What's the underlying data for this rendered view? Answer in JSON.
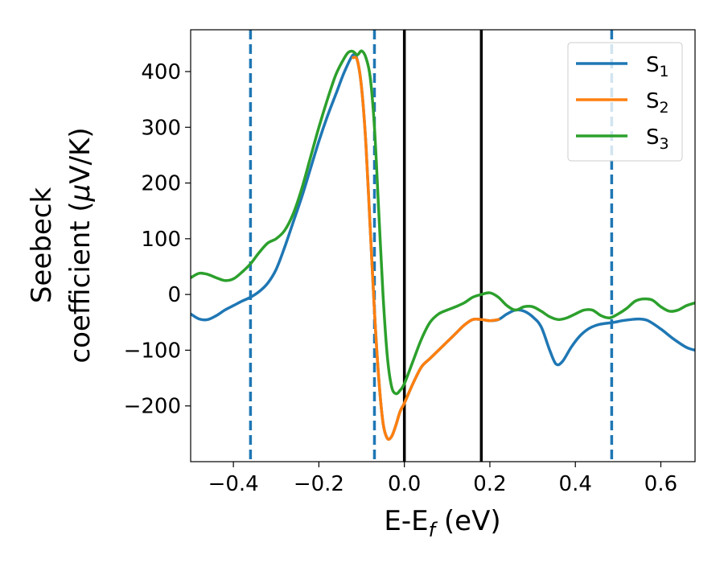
{
  "chart_data": {
    "type": "line",
    "xlabel": {
      "main": "E-E",
      "sub": "f",
      "unit": " (eV)"
    },
    "ylabel": {
      "line1": "Seebeck",
      "line2_prefix": "coefficient  (",
      "mu": "μ",
      "line2_suffix": "V/K)"
    },
    "xlim": [
      -0.5,
      0.68
    ],
    "ylim": [
      -300,
      475
    ],
    "x_ticks": [
      -0.4,
      -0.2,
      0.0,
      0.2,
      0.4,
      0.6
    ],
    "x_tick_labels": [
      "−0.4",
      "−0.2",
      "0.0",
      "0.2",
      "0.4",
      "0.6"
    ],
    "y_ticks": [
      -200,
      -100,
      0,
      100,
      200,
      300,
      400
    ],
    "y_tick_labels": [
      "−200",
      "−100",
      "0",
      "100",
      "200",
      "300",
      "400"
    ],
    "legend_position": "top-right",
    "series": [
      {
        "name": "S",
        "sub": "1",
        "color": "#1f77b4",
        "points": [
          [
            -0.5,
            -35
          ],
          [
            -0.48,
            -44
          ],
          [
            -0.46,
            -45
          ],
          [
            -0.44,
            -38
          ],
          [
            -0.42,
            -28
          ],
          [
            -0.4,
            -20
          ],
          [
            -0.38,
            -12
          ],
          [
            -0.36,
            -5
          ],
          [
            -0.34,
            5
          ],
          [
            -0.32,
            20
          ],
          [
            -0.3,
            45
          ],
          [
            -0.28,
            85
          ],
          [
            -0.26,
            130
          ],
          [
            -0.24,
            175
          ],
          [
            -0.22,
            225
          ],
          [
            -0.2,
            275
          ],
          [
            -0.18,
            320
          ],
          [
            -0.16,
            360
          ],
          [
            -0.14,
            400
          ],
          [
            -0.12,
            430
          ],
          [
            -0.11,
            420
          ],
          [
            -0.1,
            370
          ],
          [
            -0.09,
            270
          ],
          [
            -0.08,
            120
          ],
          [
            -0.07,
            -30
          ],
          [
            -0.06,
            -150
          ],
          [
            -0.05,
            -230
          ],
          [
            -0.04,
            -258
          ],
          [
            -0.03,
            -255
          ],
          [
            -0.02,
            -235
          ],
          [
            -0.01,
            -210
          ],
          [
            0.0,
            -195
          ],
          [
            0.02,
            -160
          ],
          [
            0.04,
            -130
          ],
          [
            0.06,
            -115
          ],
          [
            0.08,
            -100
          ],
          [
            0.1,
            -85
          ],
          [
            0.12,
            -70
          ],
          [
            0.14,
            -55
          ],
          [
            0.16,
            -45
          ],
          [
            0.18,
            -45
          ],
          [
            0.2,
            -47
          ],
          [
            0.22,
            -45
          ],
          [
            0.24,
            -35
          ],
          [
            0.26,
            -28
          ],
          [
            0.28,
            -30
          ],
          [
            0.3,
            -40
          ],
          [
            0.32,
            -58
          ],
          [
            0.34,
            -100
          ],
          [
            0.355,
            -125
          ],
          [
            0.37,
            -120
          ],
          [
            0.39,
            -95
          ],
          [
            0.41,
            -75
          ],
          [
            0.43,
            -62
          ],
          [
            0.45,
            -55
          ],
          [
            0.47,
            -52
          ],
          [
            0.49,
            -50
          ],
          [
            0.51,
            -47
          ],
          [
            0.53,
            -45
          ],
          [
            0.55,
            -44
          ],
          [
            0.57,
            -47
          ],
          [
            0.6,
            -62
          ],
          [
            0.63,
            -80
          ],
          [
            0.66,
            -95
          ],
          [
            0.68,
            -100
          ]
        ]
      },
      {
        "name": "S",
        "sub": "2",
        "color": "#ff7f0e",
        "points": [
          [
            -0.12,
            425
          ],
          [
            -0.11,
            420
          ],
          [
            -0.1,
            370
          ],
          [
            -0.09,
            270
          ],
          [
            -0.08,
            120
          ],
          [
            -0.07,
            -30
          ],
          [
            -0.06,
            -150
          ],
          [
            -0.05,
            -230
          ],
          [
            -0.04,
            -258
          ],
          [
            -0.03,
            -255
          ],
          [
            -0.02,
            -235
          ],
          [
            -0.01,
            -210
          ],
          [
            0.0,
            -195
          ],
          [
            0.02,
            -160
          ],
          [
            0.04,
            -130
          ],
          [
            0.06,
            -115
          ],
          [
            0.08,
            -100
          ],
          [
            0.1,
            -85
          ],
          [
            0.12,
            -70
          ],
          [
            0.14,
            -55
          ],
          [
            0.16,
            -45
          ],
          [
            0.18,
            -45
          ],
          [
            0.2,
            -47
          ],
          [
            0.22,
            -45
          ]
        ]
      },
      {
        "name": "S",
        "sub": "3",
        "color": "#2ca02c",
        "points": [
          [
            -0.5,
            30
          ],
          [
            -0.48,
            38
          ],
          [
            -0.46,
            36
          ],
          [
            -0.44,
            30
          ],
          [
            -0.42,
            25
          ],
          [
            -0.4,
            28
          ],
          [
            -0.38,
            40
          ],
          [
            -0.36,
            55
          ],
          [
            -0.34,
            75
          ],
          [
            -0.32,
            92
          ],
          [
            -0.3,
            100
          ],
          [
            -0.28,
            115
          ],
          [
            -0.26,
            145
          ],
          [
            -0.24,
            190
          ],
          [
            -0.22,
            245
          ],
          [
            -0.2,
            300
          ],
          [
            -0.18,
            350
          ],
          [
            -0.16,
            395
          ],
          [
            -0.14,
            425
          ],
          [
            -0.13,
            435
          ],
          [
            -0.12,
            436
          ],
          [
            -0.11,
            430
          ],
          [
            -0.1,
            437
          ],
          [
            -0.09,
            425
          ],
          [
            -0.08,
            390
          ],
          [
            -0.07,
            300
          ],
          [
            -0.06,
            150
          ],
          [
            -0.05,
            0
          ],
          [
            -0.04,
            -110
          ],
          [
            -0.03,
            -165
          ],
          [
            -0.02,
            -178
          ],
          [
            -0.01,
            -172
          ],
          [
            0.0,
            -160
          ],
          [
            0.02,
            -120
          ],
          [
            0.04,
            -80
          ],
          [
            0.06,
            -50
          ],
          [
            0.08,
            -35
          ],
          [
            0.1,
            -28
          ],
          [
            0.12,
            -22
          ],
          [
            0.14,
            -15
          ],
          [
            0.16,
            -5
          ],
          [
            0.18,
            0
          ],
          [
            0.2,
            3
          ],
          [
            0.22,
            -5
          ],
          [
            0.24,
            -20
          ],
          [
            0.26,
            -28
          ],
          [
            0.28,
            -22
          ],
          [
            0.3,
            -22
          ],
          [
            0.32,
            -30
          ],
          [
            0.34,
            -40
          ],
          [
            0.36,
            -45
          ],
          [
            0.38,
            -42
          ],
          [
            0.4,
            -35
          ],
          [
            0.42,
            -28
          ],
          [
            0.44,
            -28
          ],
          [
            0.46,
            -38
          ],
          [
            0.48,
            -42
          ],
          [
            0.5,
            -35
          ],
          [
            0.52,
            -25
          ],
          [
            0.54,
            -12
          ],
          [
            0.56,
            -8
          ],
          [
            0.58,
            -10
          ],
          [
            0.6,
            -22
          ],
          [
            0.62,
            -30
          ],
          [
            0.64,
            -28
          ],
          [
            0.66,
            -20
          ],
          [
            0.68,
            -15
          ]
        ]
      }
    ],
    "vertical_lines": [
      {
        "x": -0.36,
        "style": "dashed",
        "color": "#1f77b4"
      },
      {
        "x": -0.07,
        "style": "dashed",
        "color": "#1f77b4"
      },
      {
        "x": 0.485,
        "style": "dashed",
        "color": "#1f77b4"
      },
      {
        "x": 0.0,
        "style": "solid",
        "color": "#000000"
      },
      {
        "x": 0.18,
        "style": "solid",
        "color": "#000000"
      }
    ]
  }
}
